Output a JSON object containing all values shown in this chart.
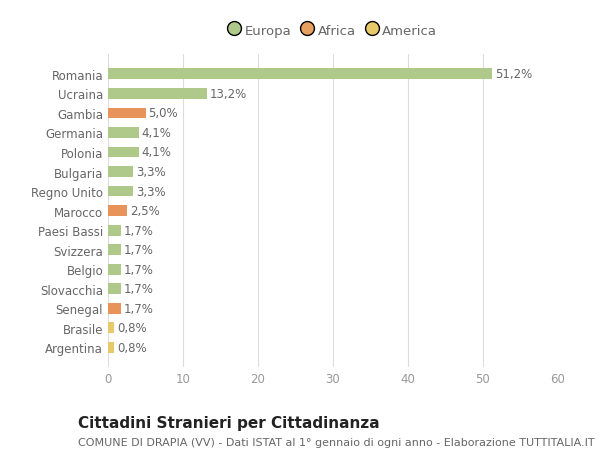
{
  "categories": [
    "Argentina",
    "Brasile",
    "Senegal",
    "Slovacchia",
    "Belgio",
    "Svizzera",
    "Paesi Bassi",
    "Marocco",
    "Regno Unito",
    "Bulgaria",
    "Polonia",
    "Germania",
    "Gambia",
    "Ucraina",
    "Romania"
  ],
  "values": [
    0.8,
    0.8,
    1.7,
    1.7,
    1.7,
    1.7,
    1.7,
    2.5,
    3.3,
    3.3,
    4.1,
    4.1,
    5.0,
    13.2,
    51.2
  ],
  "labels": [
    "0,8%",
    "0,8%",
    "1,7%",
    "1,7%",
    "1,7%",
    "1,7%",
    "1,7%",
    "2,5%",
    "3,3%",
    "3,3%",
    "4,1%",
    "4,1%",
    "5,0%",
    "13,2%",
    "51,2%"
  ],
  "colors": [
    "#e8c96a",
    "#e8c96a",
    "#e8935a",
    "#aec98a",
    "#aec98a",
    "#aec98a",
    "#aec98a",
    "#e8935a",
    "#aec98a",
    "#aec98a",
    "#aec98a",
    "#aec98a",
    "#e8935a",
    "#aec98a",
    "#aec98a"
  ],
  "legend_labels": [
    "Europa",
    "Africa",
    "America"
  ],
  "legend_colors": [
    "#aec98a",
    "#e8a060",
    "#e8c96a"
  ],
  "title": "Cittadini Stranieri per Cittadinanza",
  "subtitle": "COMUNE DI DRAPIA (VV) - Dati ISTAT al 1° gennaio di ogni anno - Elaborazione TUTTITALIA.IT",
  "xlim": [
    0,
    60
  ],
  "xticks": [
    0,
    10,
    20,
    30,
    40,
    50,
    60
  ],
  "background_color": "#ffffff",
  "grid_color": "#dddddd",
  "bar_height": 0.55,
  "title_fontsize": 11,
  "subtitle_fontsize": 8,
  "label_fontsize": 8.5,
  "tick_fontsize": 8.5,
  "legend_fontsize": 9.5
}
